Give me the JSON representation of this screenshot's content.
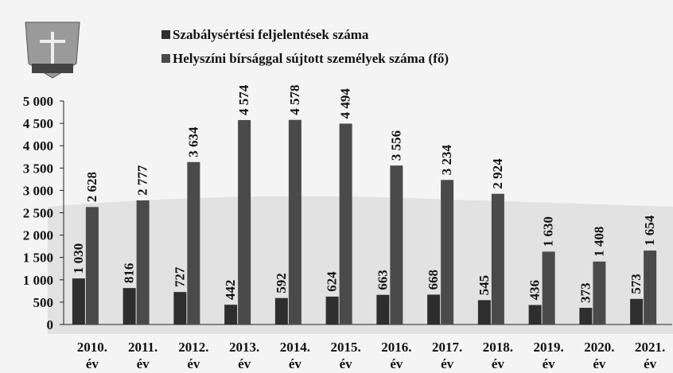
{
  "chart_data": {
    "type": "bar",
    "categories": [
      "2010. év",
      "2011. év",
      "2012. év",
      "2013. év",
      "2014. év",
      "2015. év",
      "2016. év",
      "2017. év",
      "2018. év",
      "2019. év",
      "2020. év",
      "2021. év"
    ],
    "series": [
      {
        "name": "Szabálysértési feljelentések száma",
        "color": "#2e2e2e",
        "values": [
          1030,
          816,
          727,
          442,
          592,
          624,
          663,
          668,
          545,
          436,
          373,
          573
        ],
        "value_labels": [
          "1 030",
          "816",
          "727",
          "442",
          "592",
          "624",
          "663",
          "668",
          "545",
          "436",
          "373",
          "573"
        ]
      },
      {
        "name": "Helyszíni bírsággal sújtott személyek száma (fő)",
        "color": "#4a4a4a",
        "values": [
          2628,
          2777,
          3634,
          4574,
          4578,
          4494,
          3556,
          3234,
          2924,
          1630,
          1408,
          1654
        ],
        "value_labels": [
          "2 628",
          "2 777",
          "3 634",
          "4 574",
          "4 578",
          "4 494",
          "3 556",
          "3 234",
          "2 924",
          "1 630",
          "1 408",
          "1 654"
        ]
      }
    ],
    "ylim": [
      0,
      5000
    ],
    "yticks": [
      0,
      500,
      {
        "value": 1000,
        "label": "1 000"
      },
      {
        "value": 1500,
        "label": "1 500"
      },
      {
        "value": 2000,
        "label": "2 000"
      },
      {
        "value": 2500,
        "label": "2 500"
      },
      {
        "value": 3000,
        "label": "3 000"
      },
      {
        "value": 3500,
        "label": "3 500"
      },
      {
        "value": 4000,
        "label": "4 000"
      },
      {
        "value": 4500,
        "label": "4 500"
      },
      {
        "value": 5000,
        "label": "5 000"
      }
    ]
  }
}
